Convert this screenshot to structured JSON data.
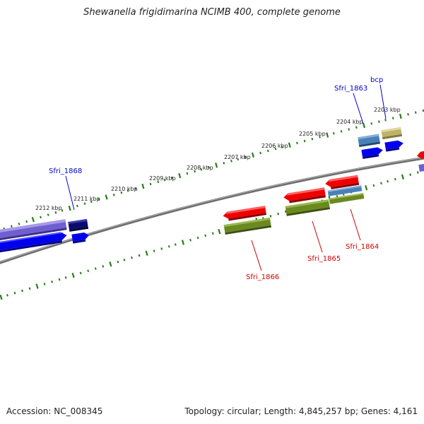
{
  "title": "Shewanella frigidimarina NCIMB 400, complete genome",
  "footer": {
    "accession": "Accession: NC_008345",
    "summary": "Topology: circular; Length: 4,845,257 bp; Genes: 4,161"
  },
  "scale_labels": [
    "2203 kbp",
    "2204 kbp",
    "2205 kbp",
    "2206 kbp",
    "2207 kbp",
    "2208 kbp",
    "2209 kbp",
    "2210 kbp",
    "2211 kbp",
    "2212 kbp"
  ],
  "genes": [
    {
      "name": "bcp",
      "strand": "forward",
      "color": "#0000cc"
    },
    {
      "name": "Sfri_1863",
      "strand": "forward",
      "color": "#0000cc"
    },
    {
      "name": "Sfri_1868",
      "strand": "forward",
      "color": "#0000cc"
    },
    {
      "name": "Sfri_1864",
      "strand": "reverse",
      "color": "#cc0000"
    },
    {
      "name": "Sfri_1865",
      "strand": "reverse",
      "color": "#cc0000"
    },
    {
      "name": "Sfri_1866",
      "strand": "reverse",
      "color": "#cc0000"
    }
  ],
  "colors": {
    "forward_label": "#0000cc",
    "reverse_label": "#cc0000",
    "tick": "#2a7a1a",
    "backbone": "#808080",
    "cds_red": "#ee0000",
    "cds_blue": "#0000ee",
    "cds_navy": "#0a0a70",
    "cds_steel": "#4a80b8",
    "cds_khaki": "#bfb36a",
    "cds_olive": "#6a8a20",
    "cds_violet": "#6f5fcf"
  }
}
